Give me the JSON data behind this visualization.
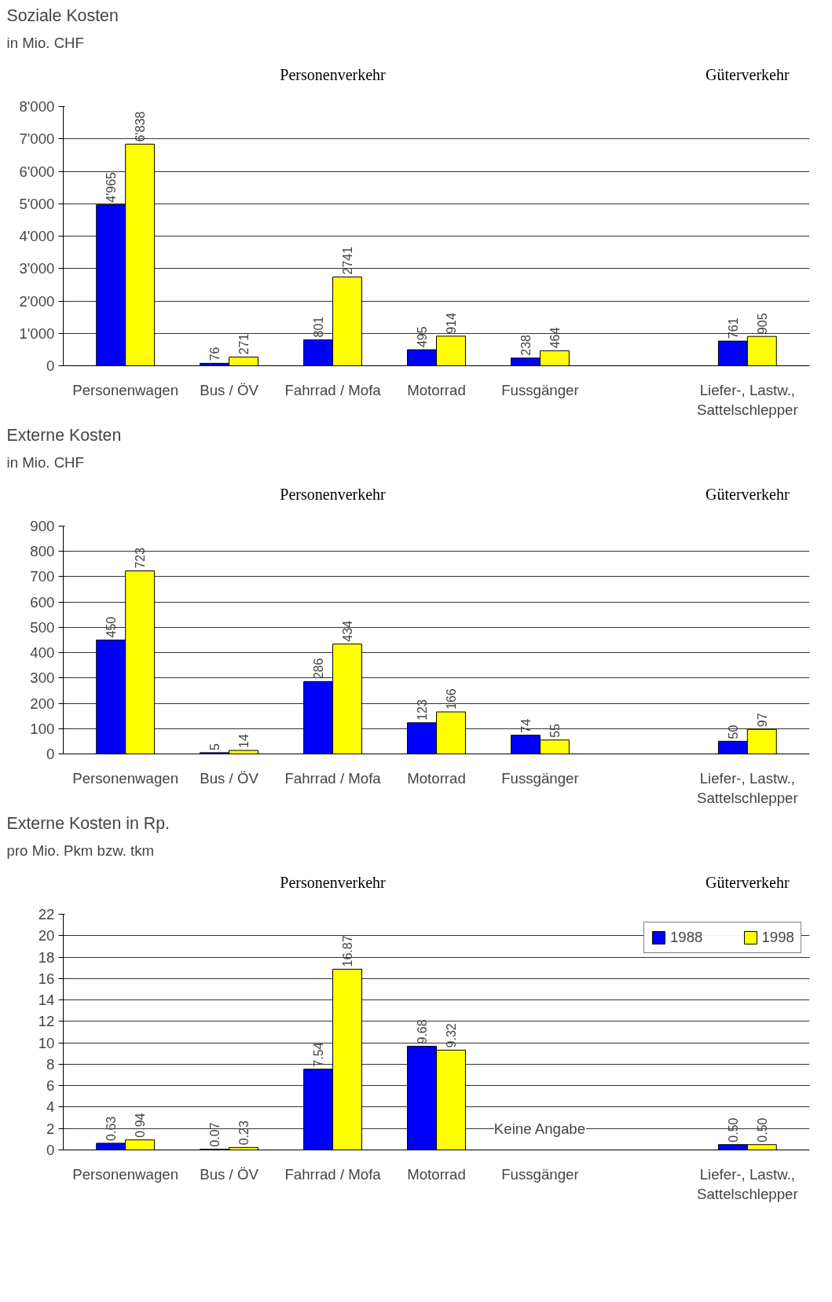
{
  "chart_data": [
    {
      "type": "bar",
      "title": "Soziale Kosten",
      "ylabel": "in Mio. CHF",
      "categories": [
        "Personenwagen",
        "Bus / ÖV",
        "Fahrrad / Mofa",
        "Motorrad",
        "Fussgänger",
        null,
        "Liefer-, Lastw., Sattelschlepper"
      ],
      "series": [
        {
          "color": "#0000ff",
          "values": [
            4965,
            76,
            801,
            495,
            238,
            null,
            761
          ],
          "value_labels": [
            "4'965",
            "76",
            "801",
            "495",
            "238",
            null,
            "761"
          ]
        },
        {
          "color": "#ffff00",
          "values": [
            6838,
            271,
            2741,
            914,
            464,
            null,
            905
          ],
          "value_labels": [
            "6'838",
            "271",
            "2741",
            "914",
            "464",
            null,
            "905"
          ]
        }
      ],
      "ylim": [
        0,
        8000
      ],
      "yticks": [
        0,
        {
          "value": 1000,
          "label": "1'000"
        },
        {
          "value": 2000,
          "label": "2'000"
        },
        {
          "value": 3000,
          "label": "3'000"
        },
        {
          "value": 4000,
          "label": "4'000"
        },
        {
          "value": 5000,
          "label": "5'000"
        },
        {
          "value": 6000,
          "label": "6'000"
        },
        {
          "value": 7000,
          "label": "7'000"
        },
        {
          "value": 8000,
          "label": "8'000"
        }
      ],
      "grid": "y",
      "annotations": [
        "Personenverkehr",
        "Güterverkehr"
      ]
    },
    {
      "type": "bar",
      "title": "Externe Kosten",
      "ylabel": "in Mio. CHF",
      "categories": [
        "Personenwagen",
        "Bus / ÖV",
        "Fahrrad / Mofa",
        "Motorrad",
        "Fussgänger",
        null,
        "Liefer-, Lastw., Sattelschlepper"
      ],
      "series": [
        {
          "color": "#0000ff",
          "values": [
            450,
            5,
            286,
            123,
            74,
            null,
            50
          ],
          "value_labels": [
            "450",
            "5",
            "286",
            "123",
            "74",
            null,
            "50"
          ]
        },
        {
          "color": "#ffff00",
          "values": [
            723,
            14,
            434,
            166,
            55,
            null,
            97
          ],
          "value_labels": [
            "723",
            "14",
            "434",
            "166",
            "55",
            null,
            "97"
          ]
        }
      ],
      "ylim": [
        0,
        900
      ],
      "yticks": [
        0,
        100,
        200,
        300,
        400,
        500,
        600,
        700,
        800,
        900
      ],
      "grid": "y",
      "annotations": [
        "Personenverkehr",
        "Güterverkehr"
      ]
    },
    {
      "type": "bar",
      "title": "Externe Kosten in Rp.",
      "ylabel": "pro Mio. Pkm bzw. tkm",
      "categories": [
        "Personenwagen",
        "Bus / ÖV",
        "Fahrrad / Mofa",
        "Motorrad",
        "Fussgänger",
        null,
        "Liefer-, Lastw., Sattelschlepper"
      ],
      "series": [
        {
          "name": "1988",
          "color": "#0000ff",
          "values": [
            0.63,
            0.07,
            7.54,
            9.68,
            null,
            null,
            0.5
          ],
          "value_labels": [
            "0.63",
            "0.07",
            "7.54",
            "9.68",
            null,
            null,
            "0.50"
          ]
        },
        {
          "name": "1998",
          "color": "#ffff00",
          "values": [
            0.94,
            0.23,
            16.87,
            9.32,
            null,
            null,
            0.5
          ],
          "value_labels": [
            "0.94",
            "0.23",
            "16.87",
            "9.32",
            null,
            null,
            "0.50"
          ]
        }
      ],
      "ylim": [
        0,
        22
      ],
      "yticks": [
        0,
        2,
        4,
        6,
        8,
        10,
        12,
        14,
        16,
        18,
        20,
        22
      ],
      "grid": "y",
      "legend": "top right",
      "annotations": [
        "Personenverkehr",
        "Güterverkehr",
        "Keine Angabe"
      ]
    }
  ]
}
